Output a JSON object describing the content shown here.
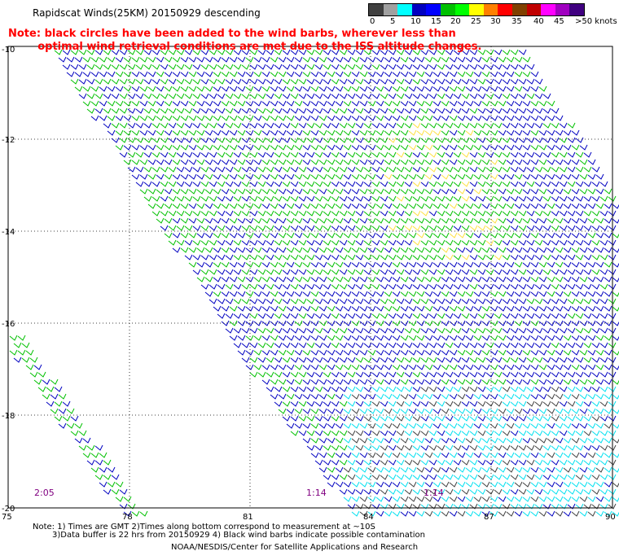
{
  "title": "Rapidscat Winds(25KM) 20150929 descending",
  "note_lines": [
    "Note: black circles have been added to the wind barbs, wherever less than",
    "        optimal wind retrieval conditions are met due to the ISS altitude changes."
  ],
  "colorbar": {
    "labels": [
      "0",
      "5",
      "10",
      "15",
      "20",
      "25",
      "30",
      "35",
      "40",
      "45",
      ">50 knots"
    ],
    "colors": [
      "#404040",
      "#a0a0a0",
      "#00ffff",
      "#0000c0",
      "#0000ff",
      "#00c000",
      "#00ff00",
      "#ffff00",
      "#ff8000",
      "#ff0000",
      "#804000",
      "#c00000",
      "#ff00ff",
      "#a000c0",
      "#400080"
    ]
  },
  "map": {
    "lat_labels": [
      "-10",
      "-12",
      "-14",
      "-16",
      "-18",
      "-20"
    ],
    "lon_labels": [
      "75",
      "78",
      "81",
      "84",
      "87",
      "90"
    ],
    "time_labels": [
      "2:05",
      "1:14",
      "1:14"
    ]
  },
  "footer": {
    "line1": "Note: 1) Times are GMT 2)Times along bottom correspond to measurement at ~10S",
    "line2": "3)Data buffer is 22 hrs from 20150929 4) Black wind barbs indicate possible contamination",
    "line3": "NOAA/NESDIS/Center for Satellite Applications and Research"
  }
}
